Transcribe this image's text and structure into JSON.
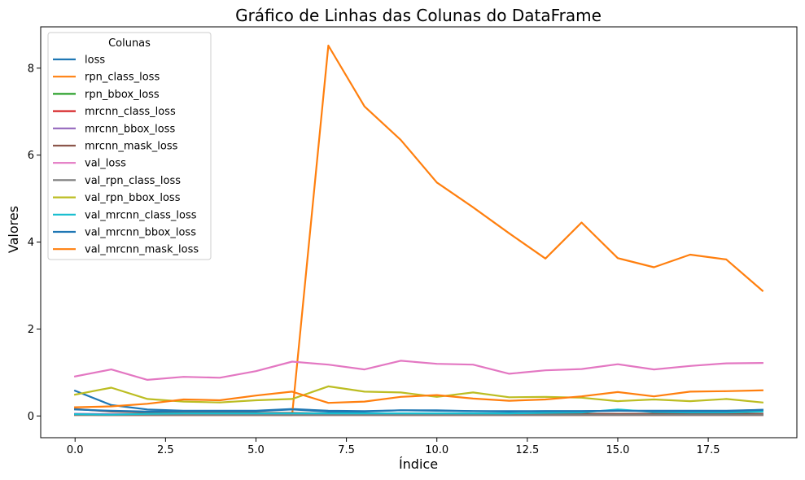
{
  "chart_data": {
    "type": "line",
    "title": "Gráfico de Linhas das Colunas do DataFrame",
    "xlabel": "Índice",
    "ylabel": "Valores",
    "xlim": [
      -0.95,
      19.95
    ],
    "ylim": [
      -0.5,
      8.95
    ],
    "x_ticks": [
      0.0,
      2.5,
      5.0,
      7.5,
      10.0,
      12.5,
      15.0,
      17.5
    ],
    "x_tick_labels": [
      "0.0",
      "2.5",
      "5.0",
      "7.5",
      "10.0",
      "12.5",
      "15.0",
      "17.5"
    ],
    "y_ticks": [
      0,
      2,
      4,
      6,
      8
    ],
    "y_tick_labels": [
      "0",
      "2",
      "4",
      "6",
      "8"
    ],
    "grid": false,
    "legend_title": "Colunas",
    "legend_position": "top-left",
    "x": [
      0,
      1,
      2,
      3,
      4,
      5,
      6,
      7,
      8,
      9,
      10,
      11,
      12,
      13,
      14,
      15,
      16,
      17,
      18,
      19
    ],
    "series": [
      {
        "name": "loss",
        "color": "#1f77b4",
        "values": [
          0.58,
          0.25,
          0.15,
          0.12,
          0.12,
          0.12,
          0.16,
          0.12,
          0.11,
          0.13,
          0.13,
          0.11,
          0.11,
          0.11,
          0.11,
          0.12,
          0.12,
          0.12,
          0.12,
          0.14
        ]
      },
      {
        "name": "rpn_class_loss",
        "color": "#ff7f0e",
        "values": [
          0.02,
          0.02,
          0.02,
          0.02,
          0.02,
          0.02,
          0.02,
          8.52,
          7.12,
          6.35,
          5.37,
          4.8,
          4.2,
          3.62,
          4.45,
          3.63,
          3.42,
          3.71,
          3.6,
          2.88
        ]
      },
      {
        "name": "rpn_bbox_loss",
        "color": "#2ca02c",
        "values": [
          0.04,
          0.03,
          0.03,
          0.03,
          0.03,
          0.03,
          0.03,
          0.03,
          0.03,
          0.03,
          0.03,
          0.03,
          0.03,
          0.03,
          0.03,
          0.03,
          0.03,
          0.03,
          0.03,
          0.03
        ]
      },
      {
        "name": "mrcnn_class_loss",
        "color": "#d62728",
        "values": [
          0.03,
          0.02,
          0.02,
          0.02,
          0.02,
          0.02,
          0.02,
          0.02,
          0.02,
          0.02,
          0.02,
          0.02,
          0.02,
          0.02,
          0.02,
          0.02,
          0.02,
          0.02,
          0.02,
          0.02
        ]
      },
      {
        "name": "mrcnn_bbox_loss",
        "color": "#9467bd",
        "values": [
          0.05,
          0.04,
          0.04,
          0.04,
          0.04,
          0.04,
          0.04,
          0.04,
          0.04,
          0.04,
          0.04,
          0.04,
          0.04,
          0.04,
          0.04,
          0.04,
          0.04,
          0.04,
          0.04,
          0.04
        ]
      },
      {
        "name": "mrcnn_mask_loss",
        "color": "#8c564b",
        "values": [
          0.16,
          0.1,
          0.08,
          0.07,
          0.07,
          0.07,
          0.07,
          0.06,
          0.06,
          0.06,
          0.06,
          0.06,
          0.05,
          0.05,
          0.05,
          0.05,
          0.05,
          0.05,
          0.05,
          0.05
        ]
      },
      {
        "name": "val_loss",
        "color": "#e377c2",
        "values": [
          0.91,
          1.07,
          0.83,
          0.9,
          0.88,
          1.03,
          1.25,
          1.18,
          1.07,
          1.27,
          1.2,
          1.18,
          0.97,
          1.05,
          1.08,
          1.19,
          1.07,
          1.15,
          1.21,
          1.22
        ]
      },
      {
        "name": "val_rpn_class_loss",
        "color": "#7f7f7f",
        "values": [
          0.02,
          0.02,
          0.02,
          0.02,
          0.02,
          0.02,
          0.02,
          0.02,
          0.02,
          0.02,
          0.02,
          0.02,
          0.02,
          0.02,
          0.02,
          0.02,
          0.02,
          0.02,
          0.02,
          0.02
        ]
      },
      {
        "name": "val_rpn_bbox_loss",
        "color": "#bcbd22",
        "values": [
          0.49,
          0.65,
          0.39,
          0.33,
          0.31,
          0.36,
          0.39,
          0.68,
          0.56,
          0.54,
          0.44,
          0.54,
          0.43,
          0.44,
          0.42,
          0.34,
          0.38,
          0.34,
          0.39,
          0.31
        ]
      },
      {
        "name": "val_mrcnn_class_loss",
        "color": "#17becf",
        "values": [
          0.04,
          0.03,
          0.05,
          0.06,
          0.06,
          0.06,
          0.06,
          0.06,
          0.06,
          0.06,
          0.06,
          0.06,
          0.06,
          0.07,
          0.08,
          0.15,
          0.09,
          0.08,
          0.08,
          0.1
        ]
      },
      {
        "name": "val_mrcnn_bbox_loss",
        "color": "#1f77b4",
        "values": [
          0.15,
          0.12,
          0.1,
          0.11,
          0.11,
          0.11,
          0.15,
          0.1,
          0.1,
          0.13,
          0.12,
          0.11,
          0.1,
          0.11,
          0.11,
          0.12,
          0.11,
          0.11,
          0.11,
          0.14
        ]
      },
      {
        "name": "val_mrcnn_mask_loss",
        "color": "#ff7f0e",
        "values": [
          0.2,
          0.22,
          0.28,
          0.38,
          0.36,
          0.47,
          0.56,
          0.3,
          0.33,
          0.44,
          0.48,
          0.4,
          0.35,
          0.38,
          0.45,
          0.55,
          0.45,
          0.56,
          0.57,
          0.59
        ]
      }
    ]
  }
}
